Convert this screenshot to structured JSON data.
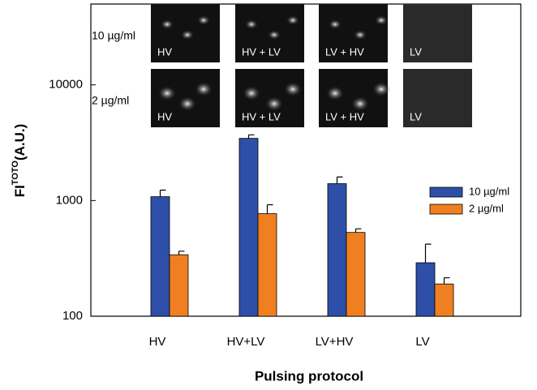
{
  "chart_data": {
    "type": "bar",
    "xlabel": "Pulsing protocol",
    "ylabel": "FI",
    "ylabel_sup": "TOTO",
    "ylabel_suffix": "(A.U.)",
    "categories": [
      "HV",
      "HV+LV",
      "LV+HV",
      "LV"
    ],
    "series": [
      {
        "name": "10 µg/ml",
        "color": "#2e4fa8",
        "values": [
          1080,
          3450,
          1400,
          290
        ],
        "errors": [
          150,
          250,
          200,
          130
        ]
      },
      {
        "name": "2 µg/ml",
        "color": "#f07f21",
        "values": [
          340,
          770,
          530,
          190
        ],
        "errors": [
          25,
          150,
          40,
          25
        ]
      }
    ],
    "log_scale": true,
    "ylim": [
      100,
      50000
    ],
    "yticks": [
      100,
      1000,
      10000
    ],
    "legend": "right",
    "insets": [
      {
        "label": "10 µg/ml",
        "panels": [
          "HV",
          "HV + LV",
          "LV + HV",
          "LV"
        ]
      },
      {
        "label": "2 µg/ml",
        "panels": [
          "HV",
          "HV + LV",
          "LV + HV",
          "LV"
        ]
      }
    ]
  }
}
